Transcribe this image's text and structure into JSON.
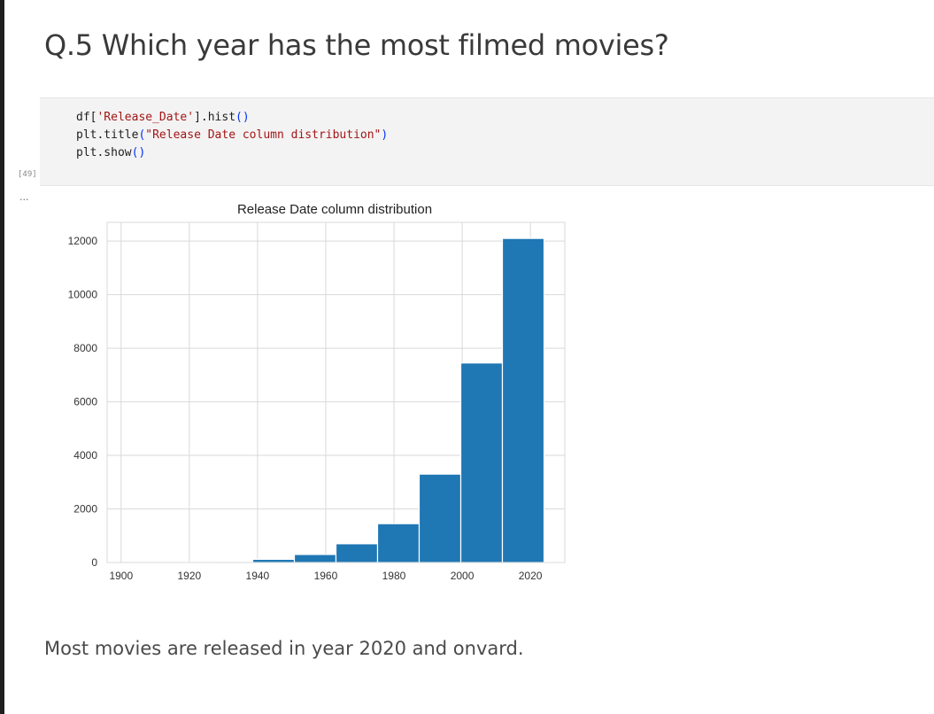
{
  "cell_heading": "Q.5 Which year has the most filmed movies?",
  "code": {
    "line1": {
      "a": "df[",
      "b": "'Release_Date'",
      "c": "].hist",
      "d": "()"
    },
    "line2": {
      "a": "plt.title",
      "b": "(",
      "c": "\"Release Date column distribution\"",
      "d": ")"
    },
    "line3": {
      "a": "plt.show",
      "b": "()"
    }
  },
  "execution_count": "[49]",
  "output_menu": "...",
  "conclusion": "Most movies are released in year 2020 and onvard.",
  "chart_data": {
    "type": "bar",
    "title": "Release Date column distribution",
    "xlabel": "",
    "ylabel": "",
    "bins": [
      [
        1902,
        1914.2
      ],
      [
        1914.2,
        1926.4
      ],
      [
        1926.4,
        1938.6
      ],
      [
        1938.6,
        1950.8
      ],
      [
        1950.8,
        1963
      ],
      [
        1963,
        1975.2
      ],
      [
        1975.2,
        1987.4
      ],
      [
        1987.4,
        1999.6
      ],
      [
        1999.6,
        2011.8
      ],
      [
        2011.8,
        2024
      ]
    ],
    "values": [
      5,
      10,
      40,
      120,
      300,
      700,
      1450,
      3300,
      7450,
      12100
    ],
    "xlim": [
      1895.9,
      2030.1
    ],
    "ylim": [
      0,
      12700
    ],
    "xticks": [
      1900,
      1920,
      1940,
      1960,
      1980,
      2000,
      2020
    ],
    "yticks": [
      0,
      2000,
      4000,
      6000,
      8000,
      10000,
      12000
    ],
    "grid": true,
    "colors": {
      "bar": "#1f77b4",
      "grid": "#d9d9d9"
    }
  }
}
